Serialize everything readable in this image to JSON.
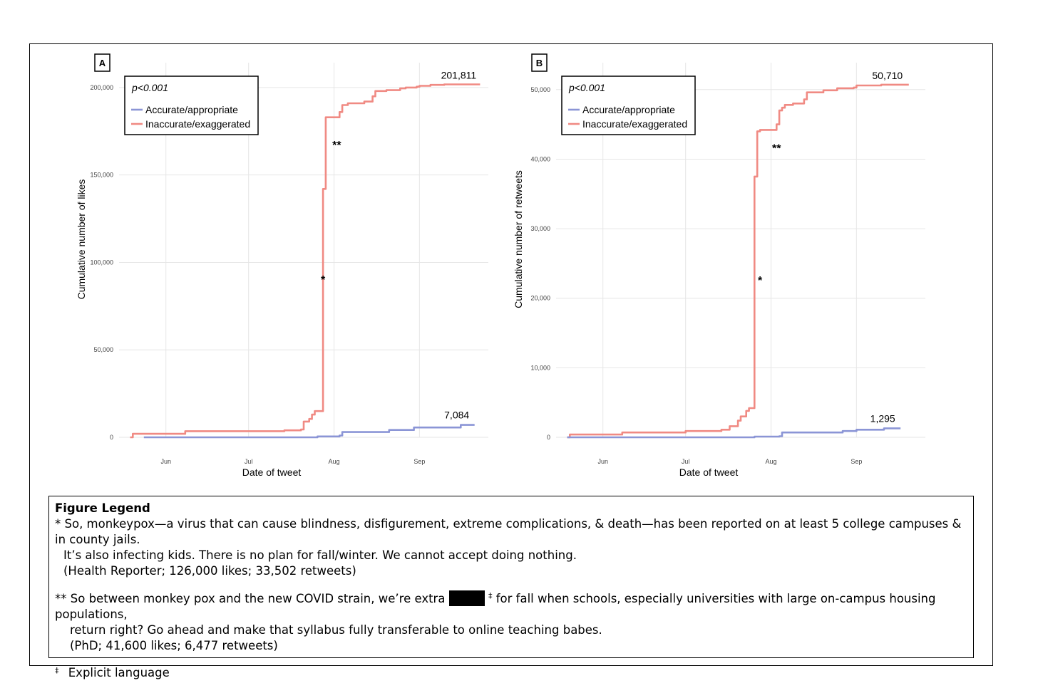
{
  "chart_data": [
    {
      "panel": "A",
      "type": "line",
      "annotation_box": {
        "pvalue": "p<0.001",
        "legend": [
          "Accurate/appropriate",
          "Inaccurate/exaggerated"
        ]
      },
      "ylabel": "Cumulative number of likes",
      "xlabel": "Date of tweet",
      "ylim": [
        0,
        202000
      ],
      "yticks": [
        0,
        50000,
        100000,
        150000,
        200000
      ],
      "ytick_labels": [
        "0",
        "50,000",
        "100,000",
        "150,000",
        "200,000"
      ],
      "xlim": [
        "2022-05-15",
        "2022-09-26"
      ],
      "xticks": [
        "2022-06-01",
        "2022-07-01",
        "2022-08-01",
        "2022-09-01"
      ],
      "xtick_labels": [
        "Jun",
        "Jul",
        "Aug",
        "Sep"
      ],
      "grid": true,
      "colors": {
        "accurate": "#8b95d6",
        "inaccurate": "#f08a83"
      },
      "end_labels": {
        "inaccurate": "201,811",
        "accurate": "7,084"
      },
      "markers": [
        {
          "text": "*",
          "x": "2022-07-28",
          "y": 88000
        },
        {
          "text": "**",
          "x": "2022-08-02",
          "y": 165000
        }
      ],
      "series": [
        {
          "name": "Inaccurate/exaggerated",
          "color": "#f08a83",
          "x": [
            "2022-05-19",
            "2022-05-20",
            "2022-06-07",
            "2022-06-08",
            "2022-07-07",
            "2022-07-14",
            "2022-07-20",
            "2022-07-21",
            "2022-07-23",
            "2022-07-24",
            "2022-07-25",
            "2022-07-27",
            "2022-07-28",
            "2022-07-29",
            "2022-07-30",
            "2022-08-03",
            "2022-08-04",
            "2022-08-06",
            "2022-08-12",
            "2022-08-15",
            "2022-08-16",
            "2022-08-20",
            "2022-08-25",
            "2022-08-27",
            "2022-08-31",
            "2022-09-01",
            "2022-09-05",
            "2022-09-10",
            "2022-09-23"
          ],
          "values": [
            0,
            2000,
            2000,
            3500,
            3500,
            4000,
            4500,
            9000,
            10500,
            13000,
            15000,
            15000,
            142000,
            183000,
            183000,
            186000,
            190000,
            191000,
            192000,
            195000,
            198000,
            198500,
            199500,
            200000,
            200500,
            201000,
            201500,
            201811,
            201811
          ]
        },
        {
          "name": "Accurate/appropriate",
          "color": "#8b95d6",
          "x": [
            "2022-05-24",
            "2022-07-25",
            "2022-07-26",
            "2022-08-03",
            "2022-08-04",
            "2022-08-20",
            "2022-08-21",
            "2022-08-29",
            "2022-08-30",
            "2022-09-15",
            "2022-09-16",
            "2022-09-21"
          ],
          "values": [
            0,
            0,
            500,
            1000,
            3000,
            3000,
            4200,
            4200,
            5600,
            5600,
            7084,
            7084
          ]
        }
      ]
    },
    {
      "panel": "B",
      "type": "line",
      "annotation_box": {
        "pvalue": "p<0.001",
        "legend": [
          "Accurate/appropriate",
          "Inaccurate/exaggerated"
        ]
      },
      "ylabel": "Cumulative number of retweets",
      "xlabel": "Date of tweet",
      "ylim": [
        0,
        50800
      ],
      "yticks": [
        0,
        10000,
        20000,
        30000,
        40000,
        50000
      ],
      "ytick_labels": [
        "0",
        "10,000",
        "20,000",
        "30,000",
        "40,000",
        "50,000"
      ],
      "xlim": [
        "2022-05-15",
        "2022-09-26"
      ],
      "xticks": [
        "2022-06-01",
        "2022-07-01",
        "2022-08-01",
        "2022-09-01"
      ],
      "xtick_labels": [
        "Jun",
        "Jul",
        "Aug",
        "Sep"
      ],
      "grid": true,
      "colors": {
        "accurate": "#8b95d6",
        "inaccurate": "#f08a83"
      },
      "end_labels": {
        "inaccurate": "50,710",
        "accurate": "1,295"
      },
      "markers": [
        {
          "text": "*",
          "x": "2022-07-28",
          "y": 22000
        },
        {
          "text": "**",
          "x": "2022-08-03",
          "y": 41000
        }
      ],
      "series": [
        {
          "name": "Inaccurate/exaggerated",
          "color": "#f08a83",
          "x": [
            "2022-05-19",
            "2022-05-20",
            "2022-06-07",
            "2022-06-08",
            "2022-07-01",
            "2022-07-14",
            "2022-07-17",
            "2022-07-20",
            "2022-07-21",
            "2022-07-23",
            "2022-07-24",
            "2022-07-26",
            "2022-07-27",
            "2022-07-28",
            "2022-08-03",
            "2022-08-04",
            "2022-08-05",
            "2022-08-06",
            "2022-08-09",
            "2022-08-13",
            "2022-08-14",
            "2022-08-20",
            "2022-08-25",
            "2022-08-31",
            "2022-09-01",
            "2022-09-10",
            "2022-09-20"
          ],
          "values": [
            0,
            400,
            400,
            700,
            900,
            1100,
            1600,
            2400,
            3000,
            3800,
            4200,
            37500,
            44000,
            44200,
            45000,
            47000,
            47400,
            47800,
            48000,
            48600,
            49600,
            49900,
            50200,
            50300,
            50600,
            50710,
            50710
          ]
        },
        {
          "name": "Accurate/appropriate",
          "color": "#8b95d6",
          "x": [
            "2022-05-19",
            "2022-07-25",
            "2022-07-26",
            "2022-08-04",
            "2022-08-05",
            "2022-08-26",
            "2022-08-27",
            "2022-08-31",
            "2022-09-01",
            "2022-09-10",
            "2022-09-11",
            "2022-09-17"
          ],
          "values": [
            0,
            0,
            100,
            150,
            700,
            700,
            900,
            900,
            1100,
            1100,
            1295,
            1295
          ]
        }
      ]
    }
  ],
  "legend_box": {
    "title": "Figure Legend",
    "note1_mark": "*",
    "note1_line1": "So, monkeypox—a virus that can cause blindness, disfigurement, extreme complications, & death—has been reported on at least 5 college campuses & in county jails.",
    "note1_line2": "It’s also infecting kids. There is no plan for fall/winter. We cannot accept doing nothing.",
    "note1_source": "(Health Reporter; 126,000 likes; 33,502 retweets)",
    "note2_mark": "**",
    "note2_pre": "So between monkey pox and the new COVID strain, we’re extra",
    "note2_dagger": "‡",
    "note2_post": "for fall when schools, especially universities with large on-campus housing populations,",
    "note2_line2": "return right? Go ahead and make that syllabus fully transferable to online teaching babes.",
    "note2_source": "(PhD; 41,600 likes; 6,477 retweets)",
    "note3_mark": "‡",
    "note3_text": "Explicit language"
  }
}
